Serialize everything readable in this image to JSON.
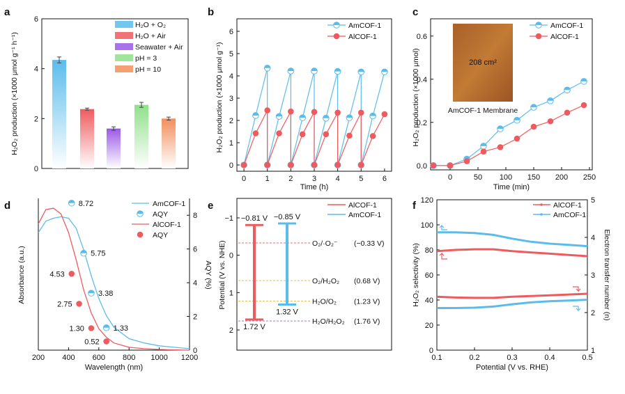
{
  "colors": {
    "blue": "#5bbcec",
    "blue_light": "#cdeafb",
    "red": "#ee5b5f",
    "red_light": "#fbd3d3",
    "purple": "#9b59e6",
    "green": "#8fe08a",
    "orange": "#f28e5c",
    "membrane": "#b56a2a",
    "yellow": "#f2e600"
  },
  "chart_data": [
    {
      "panel": "a",
      "type": "bar",
      "ylabel": "H₂O₂ production (×1000 μmol g⁻¹ h⁻¹)",
      "ylim": [
        0,
        6
      ],
      "yticks": [
        "0",
        "2",
        "4",
        "6"
      ],
      "categories": [
        "H₂O + O₂",
        "H₂O + Air",
        "Seawater + Air",
        "pH = 3",
        "pH = 10"
      ],
      "values": [
        4.35,
        2.38,
        1.6,
        2.55,
        2.0
      ],
      "errors": [
        0.12,
        0.04,
        0.07,
        0.1,
        0.06
      ]
    },
    {
      "panel": "b",
      "type": "line",
      "xlabel": "Time (h)",
      "ylabel": "H₂O₂ production (×1000 μmol g⁻¹)",
      "xlim": [
        -0.3,
        6.3
      ],
      "ylim": [
        0,
        6
      ],
      "xticks": [
        "0",
        "1",
        "2",
        "3",
        "4",
        "5",
        "6"
      ],
      "yticks": [
        "0",
        "1",
        "2",
        "3",
        "4",
        "5",
        "6"
      ],
      "series": [
        {
          "name": "AmCOF-1",
          "x": [
            0,
            0.5,
            1,
            1,
            1.5,
            2,
            2,
            2.5,
            3,
            3,
            3.5,
            4,
            4,
            4.5,
            5,
            5,
            5.5,
            6
          ],
          "y": [
            0,
            2.22,
            4.35,
            0,
            2.18,
            4.22,
            0,
            2.12,
            4.22,
            0,
            2.1,
            4.2,
            0,
            2.12,
            4.18,
            0,
            2.2,
            4.18
          ]
        },
        {
          "name": "AlCOF-1",
          "x": [
            0,
            0.5,
            1,
            1,
            1.5,
            2,
            2,
            2.5,
            3,
            3,
            3.5,
            4,
            4,
            4.5,
            5,
            5,
            5.5,
            6
          ],
          "y": [
            0,
            1.42,
            2.45,
            0,
            1.42,
            2.4,
            0,
            1.38,
            2.38,
            0,
            1.38,
            2.35,
            0,
            1.32,
            2.35,
            0,
            1.3,
            2.28
          ]
        }
      ]
    },
    {
      "panel": "c",
      "type": "line",
      "xlabel": "Time (min)",
      "ylabel": "H₂O₂ production (×1000 μmol)",
      "xlim": [
        -35,
        255
      ],
      "ylim": [
        -0.02,
        0.68
      ],
      "xticks": [
        "0",
        "50",
        "100",
        "150",
        "200",
        "250"
      ],
      "yticks": [
        "0.0",
        "0.2",
        "0.4",
        "0.6"
      ],
      "inset_label": "208 cm²",
      "inset_caption": "AmCOF-1 Membrane",
      "series": [
        {
          "name": "AmCOF-1",
          "x": [
            -30,
            0,
            30,
            60,
            90,
            120,
            150,
            180,
            210,
            240
          ],
          "y": [
            0,
            0,
            0.03,
            0.09,
            0.17,
            0.21,
            0.27,
            0.3,
            0.35,
            0.39
          ]
        },
        {
          "name": "AlCOF-1",
          "x": [
            -30,
            0,
            30,
            60,
            90,
            120,
            150,
            180,
            210,
            240
          ],
          "y": [
            0,
            0,
            0.02,
            0.065,
            0.085,
            0.125,
            0.18,
            0.205,
            0.245,
            0.28
          ]
        }
      ]
    },
    {
      "panel": "d",
      "type": "line",
      "xlabel": "Wavelength (nm)",
      "ylabel": "Absorbance (a.u.)",
      "ylabel2": "AQY (%)",
      "xlim": [
        200,
        1200
      ],
      "ylim2": [
        0,
        9
      ],
      "xticks": [
        "200",
        "400",
        "600",
        "800",
        "1000",
        "1200"
      ],
      "yticks2": [
        "0",
        "2",
        "4",
        "6",
        "8"
      ],
      "series": [
        {
          "name": "AmCOF-1",
          "x": [
            200,
            250,
            300,
            350,
            400,
            450,
            500,
            550,
            600,
            650,
            700,
            800,
            900,
            1000,
            1100,
            1200
          ],
          "y": [
            0.82,
            0.9,
            0.92,
            0.93,
            0.92,
            0.85,
            0.7,
            0.52,
            0.36,
            0.24,
            0.16,
            0.08,
            0.05,
            0.03,
            0.02,
            0.01
          ]
        },
        {
          "name": "AlCOF-1",
          "x": [
            200,
            250,
            300,
            350,
            400,
            450,
            500,
            550,
            600,
            650,
            700,
            800,
            900,
            1000,
            1100,
            1200
          ],
          "y": [
            0.88,
            0.98,
            0.99,
            0.95,
            0.82,
            0.63,
            0.42,
            0.26,
            0.15,
            0.09,
            0.05,
            0.02,
            0.01,
            0.005,
            0.002,
            0.0
          ]
        }
      ],
      "aqy_amcof": {
        "x": [
          420,
          500,
          550,
          650
        ],
        "y": [
          8.72,
          5.75,
          3.38,
          1.33
        ],
        "labels": [
          "8.72",
          "5.75",
          "3.38",
          "1.33"
        ]
      },
      "aqy_alcof": {
        "x": [
          420,
          470,
          550,
          650
        ],
        "y": [
          4.53,
          2.75,
          1.3,
          0.52
        ],
        "labels": [
          "4.53",
          "2.75",
          "1.30",
          "0.52"
        ]
      },
      "legend": [
        "AmCOF-1",
        "AQY",
        "AlCOF-1",
        "AQY"
      ]
    },
    {
      "panel": "e",
      "type": "bar",
      "ylabel": "Potential (V vs. NHE)",
      "ylim": [
        -1.3,
        2.3
      ],
      "yticks": [
        "−1",
        "0",
        "1",
        "2"
      ],
      "series": [
        {
          "name": "AlCOF-1",
          "top": -0.81,
          "bottom": 1.72,
          "top_label": "−0.81 V",
          "bottom_label": "1.72 V"
        },
        {
          "name": "AmCOF-1",
          "top": -0.85,
          "bottom": 1.32,
          "top_label": "−0.85 V",
          "bottom_label": "1.32 V"
        }
      ],
      "levels": [
        {
          "label": "O₂/·O₂⁻",
          "value_label": "(−0.33 V)",
          "v": -0.33
        },
        {
          "label": "O₂/H₂O₂",
          "value_label": "(0.68 V)",
          "v": 0.68
        },
        {
          "label": "H₂O/O₂",
          "value_label": "(1.23 V)",
          "v": 1.23
        },
        {
          "label": "H₂O/H₂O₂",
          "value_label": "(1.76 V)",
          "v": 1.76
        }
      ]
    },
    {
      "panel": "f",
      "type": "line",
      "xlabel": "Potential (V vs. RHE)",
      "ylabel": "H₂O₂ selectivity (%)",
      "ylabel2": "Electron transfer number (n)",
      "xlim": [
        0.1,
        0.5
      ],
      "ylim": [
        0,
        120
      ],
      "ylim2": [
        1,
        5
      ],
      "xticks": [
        "0.1",
        "0.2",
        "0.3",
        "0.4",
        "0.5"
      ],
      "yticks": [
        "0",
        "20",
        "40",
        "60",
        "80",
        "100",
        "120"
      ],
      "yticks2": [
        "1",
        "2",
        "3",
        "4",
        "5"
      ],
      "series": [
        {
          "name": "AlCOF-1",
          "x": [
            0.1,
            0.15,
            0.2,
            0.25,
            0.3,
            0.35,
            0.4,
            0.45,
            0.5
          ],
          "sel": [
            79,
            80,
            80.5,
            80.5,
            79,
            78,
            77,
            76,
            75
          ],
          "n": [
            2.42,
            2.4,
            2.39,
            2.39,
            2.42,
            2.44,
            2.46,
            2.48,
            2.5
          ]
        },
        {
          "name": "AmCOF-1",
          "x": [
            0.1,
            0.15,
            0.2,
            0.25,
            0.3,
            0.35,
            0.4,
            0.45,
            0.5
          ],
          "sel": [
            94,
            94,
            93.5,
            92,
            89,
            86.5,
            85,
            84,
            83
          ],
          "n": [
            2.12,
            2.12,
            2.13,
            2.16,
            2.22,
            2.27,
            2.3,
            2.32,
            2.34
          ]
        }
      ]
    }
  ],
  "panels": {
    "a": "a",
    "b": "b",
    "c": "c",
    "d": "d",
    "e": "e",
    "f": "f"
  }
}
